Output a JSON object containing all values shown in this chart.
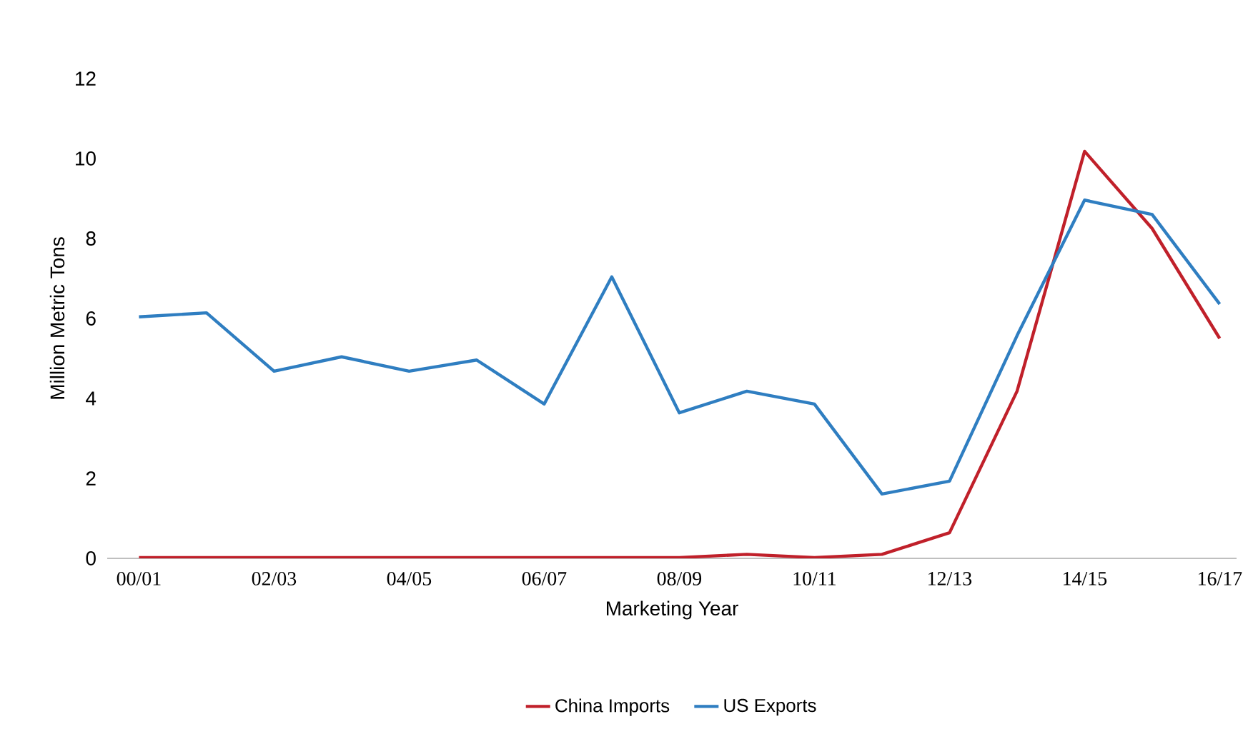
{
  "chart_data": {
    "type": "line",
    "xlabel": "Marketing Year",
    "ylabel": "Million Metric Tons",
    "categories": [
      "00/01",
      null,
      "02/03",
      null,
      "04/05",
      null,
      "06/07",
      null,
      "08/09",
      null,
      "10/11",
      null,
      "12/13",
      null,
      "14/15",
      null,
      "16/17"
    ],
    "series": [
      {
        "name": "China Imports",
        "color": "#c0202a",
        "values": [
          0.02,
          0.02,
          0.02,
          0.02,
          0.02,
          0.02,
          0.02,
          0.02,
          0.02,
          0.1,
          0.02,
          0.1,
          0.64,
          4.18,
          10.18,
          8.25,
          5.5
        ]
      },
      {
        "name": "US Exports",
        "color": "#2f7ec1",
        "values": [
          6.04,
          6.14,
          4.68,
          5.04,
          4.68,
          4.96,
          3.86,
          7.04,
          3.64,
          4.18,
          3.86,
          1.61,
          1.93,
          5.57,
          8.96,
          8.6,
          6.36
        ]
      }
    ],
    "ylim": [
      0,
      12
    ],
    "yticks": [
      0,
      2,
      4,
      6,
      8,
      10,
      12
    ],
    "grid": false,
    "legend": "bottom",
    "marker": "none",
    "line_style": "solid"
  }
}
